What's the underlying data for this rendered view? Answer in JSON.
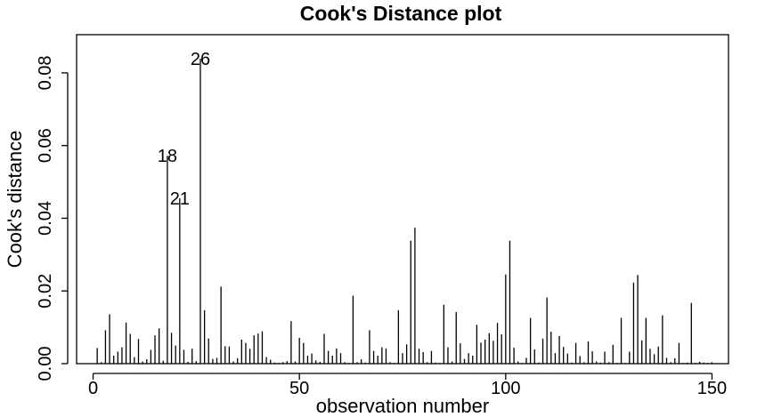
{
  "chart_data": {
    "type": "bar",
    "style": "vertical-spikes",
    "title": "Cook's Distance plot",
    "xlabel": "observation number",
    "ylabel": "Cook's distance",
    "xlim": [
      -4,
      154
    ],
    "ylim": [
      0,
      0.0905
    ],
    "xticks": [
      0,
      50,
      100,
      150
    ],
    "xtick_labels": [
      "0",
      "50",
      "100",
      "150"
    ],
    "yticks": [
      0,
      0.02,
      0.04,
      0.06,
      0.08
    ],
    "ytick_labels": [
      "0.00",
      "0.02",
      "0.04",
      "0.06",
      "0.08"
    ],
    "labeled_points": [
      {
        "obs": 26,
        "label": "26"
      },
      {
        "obs": 18,
        "label": "18"
      },
      {
        "obs": 21,
        "label": "21"
      }
    ],
    "observations": [
      1,
      2,
      3,
      4,
      5,
      6,
      7,
      8,
      9,
      10,
      11,
      12,
      13,
      14,
      15,
      16,
      17,
      18,
      19,
      20,
      21,
      22,
      23,
      24,
      25,
      26,
      27,
      28,
      29,
      30,
      31,
      32,
      33,
      34,
      35,
      36,
      37,
      38,
      39,
      40,
      41,
      42,
      43,
      44,
      45,
      46,
      47,
      48,
      49,
      50,
      51,
      52,
      53,
      54,
      55,
      56,
      57,
      58,
      59,
      60,
      61,
      62,
      63,
      64,
      65,
      66,
      67,
      68,
      69,
      70,
      71,
      72,
      73,
      74,
      75,
      76,
      77,
      78,
      79,
      80,
      81,
      82,
      83,
      84,
      85,
      86,
      87,
      88,
      89,
      90,
      91,
      92,
      93,
      94,
      95,
      96,
      97,
      98,
      99,
      100,
      101,
      102,
      103,
      104,
      105,
      106,
      107,
      108,
      109,
      110,
      111,
      112,
      113,
      114,
      115,
      116,
      117,
      118,
      119,
      120,
      121,
      122,
      123,
      124,
      125,
      126,
      127,
      128,
      129,
      130,
      131,
      132,
      133,
      134,
      135,
      136,
      137,
      138,
      139,
      140,
      141,
      142,
      143,
      144,
      145,
      146,
      147,
      148,
      149,
      150
    ],
    "values": [
      0.0043,
      0.0004,
      0.0092,
      0.0136,
      0.0022,
      0.0033,
      0.0045,
      0.0113,
      0.0082,
      0.0018,
      0.0068,
      0.0006,
      0.0012,
      0.0038,
      0.0078,
      0.0097,
      0.0008,
      0.0572,
      0.0085,
      0.005,
      0.0455,
      0.0038,
      0.0005,
      0.0041,
      0.0007,
      0.0839,
      0.0147,
      0.0069,
      0.0013,
      0.0016,
      0.0212,
      0.0048,
      0.0047,
      0.0006,
      0.0015,
      0.0066,
      0.0057,
      0.0041,
      0.0078,
      0.0083,
      0.0089,
      0.0018,
      0.0011,
      0.0003,
      0.0002,
      0.0004,
      0.0007,
      0.0117,
      0.0006,
      0.0071,
      0.0057,
      0.0022,
      0.0028,
      0.0009,
      0.0005,
      0.0082,
      0.0035,
      0.0022,
      0.0042,
      0.0029,
      0.0004,
      0.0002,
      0.0187,
      0.0004,
      0.0012,
      0.0003,
      0.0092,
      0.0035,
      0.0022,
      0.0045,
      0.0042,
      0.0004,
      0.0002,
      0.0147,
      0.0029,
      0.0053,
      0.0338,
      0.0374,
      0.0041,
      0.0032,
      0.0004,
      0.0035,
      0.0003,
      0.0002,
      0.0162,
      0.0045,
      0.0006,
      0.0142,
      0.0056,
      0.0013,
      0.0029,
      0.0022,
      0.0107,
      0.0058,
      0.0066,
      0.0084,
      0.0063,
      0.0112,
      0.0081,
      0.0245,
      0.0338,
      0.0044,
      0.0006,
      0.0002,
      0.0016,
      0.0126,
      0.0039,
      0.0003,
      0.0069,
      0.0182,
      0.0088,
      0.0029,
      0.0076,
      0.0046,
      0.0028,
      0.0003,
      0.0057,
      0.0021,
      0.0004,
      0.0061,
      0.0034,
      0.0006,
      0.0003,
      0.0033,
      0.0004,
      0.0052,
      0.0002,
      0.0126,
      0.0002,
      0.0033,
      0.0223,
      0.0244,
      0.0064,
      0.0126,
      0.0041,
      0.0026,
      0.0047,
      0.0133,
      0.0016,
      0.0004,
      0.0015,
      0.0057,
      0.0002,
      0.0003,
      0.0167,
      0.0002,
      0.0005,
      0.0003,
      0.0002,
      0.0004
    ]
  }
}
